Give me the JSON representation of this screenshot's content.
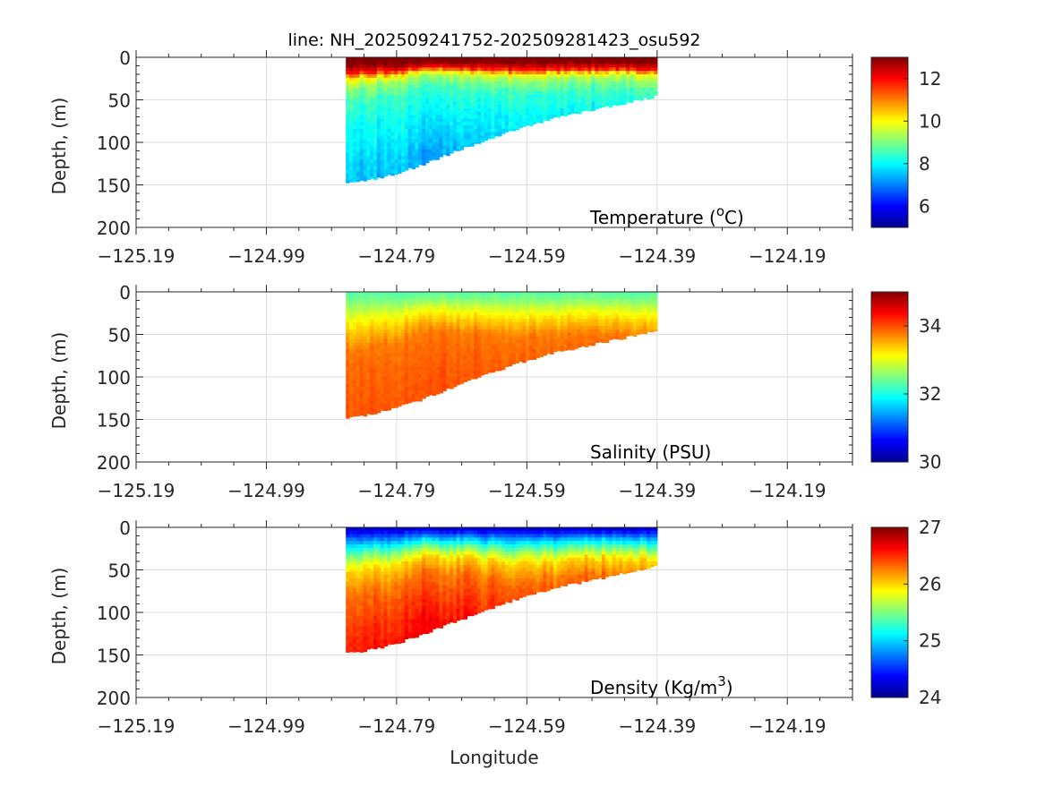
{
  "figure_title": "line: NH_202509241752-202509281423_osu592",
  "chart_data": [
    {
      "type": "heatmap",
      "variable": "temperature",
      "title": "line: NH_202509241752-202509281423_osu592",
      "label": {
        "main": "Temperature (",
        "sup": "o",
        "end": "C)"
      },
      "xlabel": "",
      "ylabel": "Depth, (m)",
      "xlim": [
        -125.19,
        -124.09
      ],
      "ylim": [
        200,
        0
      ],
      "xticks": [
        -125.19,
        -124.99,
        -124.79,
        -124.59,
        -124.39,
        -124.19
      ],
      "xtick_labels": [
        "−125.19",
        "−124.99",
        "−124.79",
        "−124.59",
        "−124.39",
        "−124.19"
      ],
      "yticks": [
        0,
        50,
        100,
        150,
        200
      ],
      "ytick_labels": [
        "0",
        "50",
        "100",
        "150",
        "200"
      ],
      "grid": true,
      "colormap": "jet",
      "colorbar": {
        "limits": [
          5,
          13
        ],
        "ticks": [
          6,
          8,
          10,
          12
        ],
        "tick_labels": [
          "6",
          "8",
          "10",
          "12"
        ]
      },
      "profile": {
        "depth": [
          0,
          8,
          16,
          22,
          30,
          45,
          70,
          100,
          150
        ],
        "value": [
          13.2,
          12.9,
          11.8,
          10,
          9.2,
          8.5,
          8.1,
          7.8,
          7.3
        ]
      },
      "noise": 0.35
    },
    {
      "type": "heatmap",
      "variable": "salinity",
      "label": {
        "main": "Salinity (PSU)",
        "sup": "",
        "end": ""
      },
      "xlabel": "",
      "ylabel": "Depth, (m)",
      "xlim": [
        -125.19,
        -124.09
      ],
      "ylim": [
        200,
        0
      ],
      "xticks": [
        -125.19,
        -124.99,
        -124.79,
        -124.59,
        -124.39,
        -124.19
      ],
      "xtick_labels": [
        "−125.19",
        "−124.99",
        "−124.79",
        "−124.59",
        "−124.39",
        "−124.19"
      ],
      "yticks": [
        0,
        50,
        100,
        150,
        200
      ],
      "ytick_labels": [
        "0",
        "50",
        "100",
        "150",
        "200"
      ],
      "grid": true,
      "colormap": "jet",
      "colorbar": {
        "limits": [
          30,
          35
        ],
        "ticks": [
          30,
          32,
          34
        ],
        "tick_labels": [
          "30",
          "32",
          "34"
        ]
      },
      "profile": {
        "depth": [
          0,
          10,
          25,
          40,
          60,
          90,
          150
        ],
        "value": [
          32.3,
          32.5,
          33.0,
          33.4,
          33.8,
          33.9,
          34.0
        ]
      },
      "noise": 0.12
    },
    {
      "type": "heatmap",
      "variable": "density",
      "label": {
        "main": "Density (Kg/m",
        "sup": "3",
        "end": ")"
      },
      "xlabel": "Longitude",
      "ylabel": "Depth, (m)",
      "xlim": [
        -125.19,
        -124.09
      ],
      "ylim": [
        200,
        0
      ],
      "xticks": [
        -125.19,
        -124.99,
        -124.79,
        -124.59,
        -124.39,
        -124.19
      ],
      "xtick_labels": [
        "−125.19",
        "−124.99",
        "−124.79",
        "−124.59",
        "−124.39",
        "−124.19"
      ],
      "yticks": [
        0,
        50,
        100,
        150,
        200
      ],
      "ytick_labels": [
        "0",
        "50",
        "100",
        "150",
        "200"
      ],
      "grid": true,
      "colormap": "jet",
      "colorbar": {
        "limits": [
          24,
          27
        ],
        "ticks": [
          24,
          25,
          26,
          27
        ],
        "tick_labels": [
          "24",
          "25",
          "26",
          "27"
        ]
      },
      "profile": {
        "depth": [
          0,
          8,
          18,
          30,
          45,
          70,
          100,
          150
        ],
        "value": [
          24.15,
          24.5,
          25.0,
          25.5,
          26.0,
          26.3,
          26.45,
          26.65
        ]
      },
      "noise": 0.1
    }
  ],
  "section": {
    "lon_range": [
      -124.868,
      -124.39
    ],
    "bottom_depth": {
      "lon": [
        -124.868,
        -124.84,
        -124.8,
        -124.76,
        -124.72,
        -124.68,
        -124.64,
        -124.6,
        -124.55,
        -124.5,
        -124.45,
        -124.39
      ],
      "depth": [
        147,
        145,
        138,
        128,
        116,
        104,
        93,
        82,
        71,
        63,
        55,
        45
      ]
    },
    "layer_stretch": {
      "lon": [
        -124.868,
        -124.8,
        -124.75,
        -124.7,
        -124.65,
        -124.6,
        -124.55,
        -124.5,
        -124.45,
        -124.39
      ],
      "factor": [
        1.15,
        1.05,
        0.75,
        0.8,
        0.9,
        0.95,
        0.9,
        0.85,
        0.85,
        0.9
      ]
    }
  }
}
